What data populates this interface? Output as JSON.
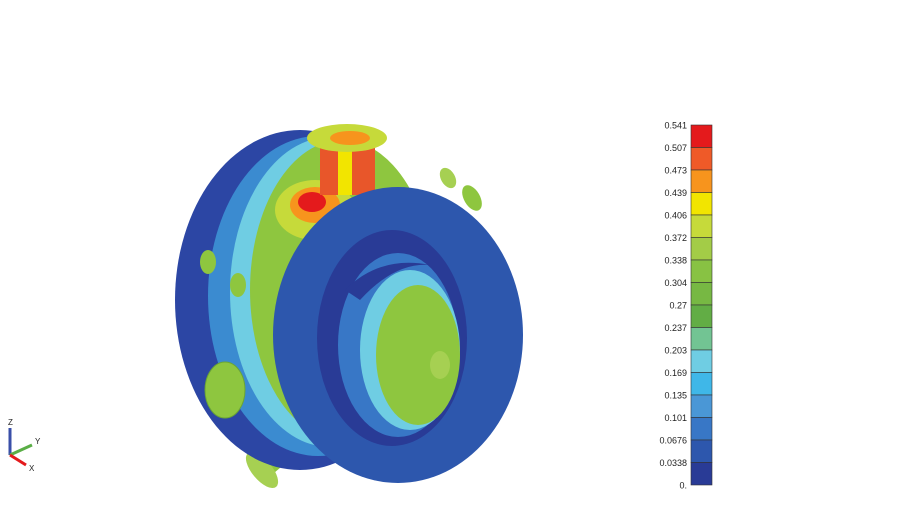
{
  "legend": {
    "labels": [
      "0.541",
      "0.507",
      "0.473",
      "0.439",
      "0.406",
      "0.372",
      "0.338",
      "0.304",
      "0.27",
      "0.237",
      "0.203",
      "0.169",
      "0.135",
      "0.101",
      "0.0676",
      "0.0338",
      "0."
    ],
    "colors": [
      "#e41a1c",
      "#ef5a28",
      "#f7941d",
      "#f2e500",
      "#c6da3a",
      "#a3cc47",
      "#88c243",
      "#77b843",
      "#62ad45",
      "#72c493",
      "#6fcde3",
      "#3fb7e8",
      "#4a97d6",
      "#3877c6",
      "#2d57ad",
      "#293b96"
    ]
  },
  "triad": {
    "z": "Z",
    "y": "Y",
    "x": "X"
  }
}
